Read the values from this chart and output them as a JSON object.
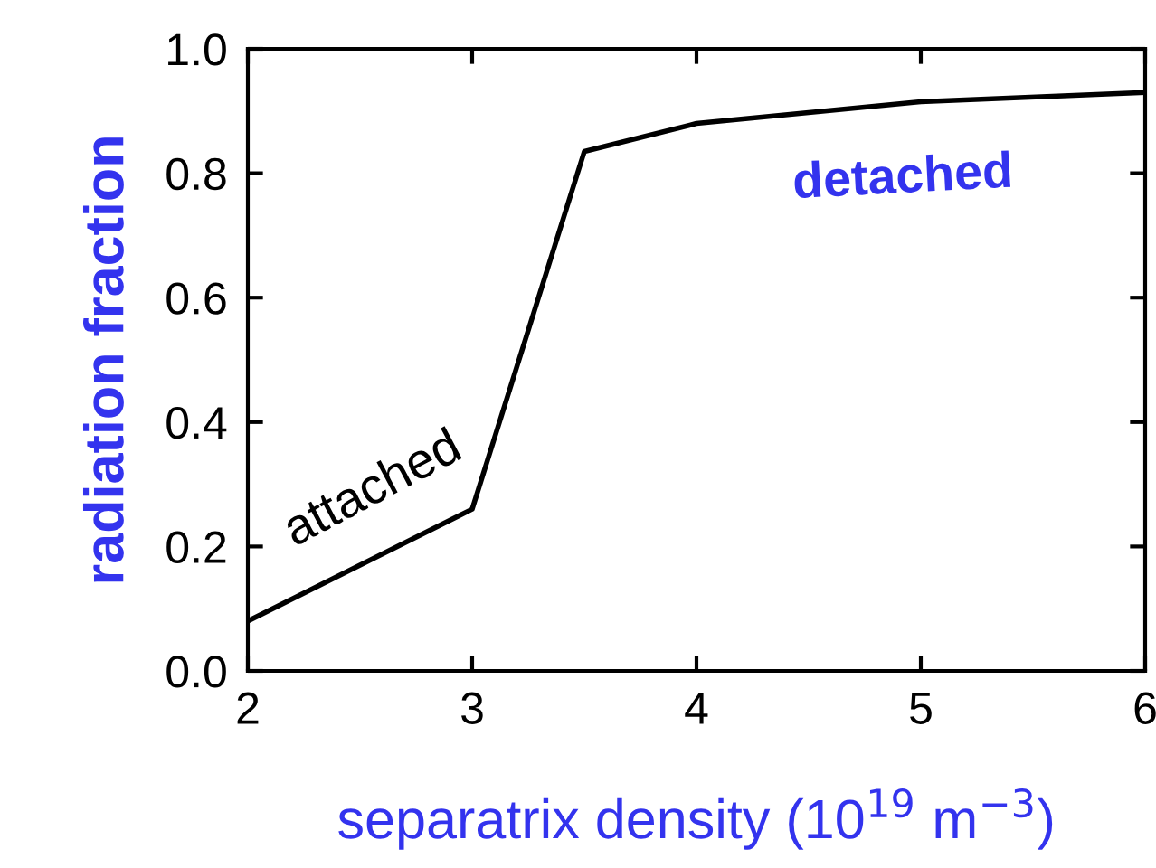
{
  "chart_data": {
    "type": "line",
    "xlabel": "separatrix density (10$^{19}$ m$^{−3}$)",
    "ylabel": "radiation fraction",
    "x": [
      2,
      3,
      3.5,
      4,
      5,
      6
    ],
    "series": [
      {
        "color": "#000000",
        "values": [
          0.08,
          0.26,
          0.835,
          0.88,
          0.915,
          0.93
        ]
      }
    ],
    "xlim": [
      2,
      6
    ],
    "xticks": [
      2,
      3,
      4,
      5,
      6
    ],
    "ylim": [
      0,
      1.0
    ],
    "yticks": [
      {
        "value": 0,
        "label": "0.0"
      },
      {
        "value": 0.2,
        "label": "0.2"
      },
      {
        "value": 0.4,
        "label": "0.4"
      },
      {
        "value": 0.6,
        "label": "0.6"
      },
      {
        "value": 0.8,
        "label": "0.8"
      },
      {
        "value": 1.0,
        "label": "1.0"
      }
    ],
    "annotations": [
      "attached",
      "detached"
    ],
    "grid": false,
    "legend": false,
    "marker": "none",
    "line_style": "solid"
  }
}
